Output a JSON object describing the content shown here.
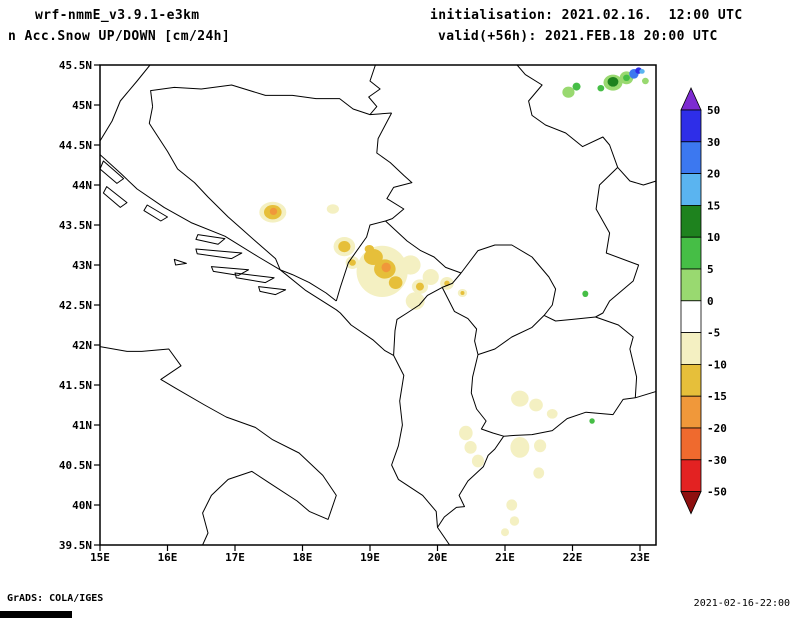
{
  "header": {
    "model_line": "wrf-nmmE_v3.9.1-e3km",
    "product_line": "n Acc.Snow UP/DOWN [cm/24h]",
    "init_line": "initialisation: 2021.02.16.  12:00 UTC",
    "valid_line": "valid(+56h): 2021.FEB.18 20:00 UTC"
  },
  "footer": {
    "credit": "GrADS: COLA/IGES",
    "timestamp": "2021-02-16-22:00"
  },
  "chart_data": {
    "type": "map",
    "title": "Acc.Snow UP/DOWN [cm/24h]",
    "units": "cm/24h",
    "extent": {
      "lon_min": 15.0,
      "lon_max": 23.24,
      "lat_min": 39.5,
      "lat_max": 45.5
    },
    "x_ticks": [
      "15E",
      "16E",
      "17E",
      "18E",
      "19E",
      "20E",
      "21E",
      "22E",
      "23E"
    ],
    "y_ticks": [
      "45.5N",
      "45N",
      "44.5N",
      "44N",
      "43.5N",
      "43N",
      "42.5N",
      "42N",
      "41.5N",
      "41N",
      "40.5N",
      "40N",
      "39.5N"
    ],
    "grid": false,
    "colorbar": {
      "position": "right",
      "labels": [
        "50",
        "30",
        "20",
        "15",
        "10",
        "5",
        "0",
        "-5",
        "-10",
        "-15",
        "-20",
        "-30",
        "-50"
      ],
      "segment_colors": [
        "#2e2ee8",
        "#3c78f0",
        "#5ab4f0",
        "#1e821e",
        "#46be46",
        "#99d970",
        "#ffffff",
        "#f4f0c2",
        "#e6bf3a",
        "#f0983a",
        "#ef6a2e",
        "#e32222"
      ],
      "above_color": "#7d2bd1",
      "below_color": "#8e0f0f"
    },
    "band_colors": {
      "-20_-15": "#f0983a",
      "-15_-10": "#e6bf3a",
      "-10_-5": "#f4f0c2",
      "0_5": "#99d970",
      "5_10": "#46be46",
      "10_15": "#1e821e",
      "15_20": "#5ab4f0",
      "20_30": "#3c78f0",
      "30_50": "#2e2ee8"
    },
    "snow_patches": [
      {
        "lon": 17.56,
        "lat": 43.66,
        "rx": 0.2,
        "ry": 0.13,
        "band": "-10_-5"
      },
      {
        "lon": 17.56,
        "lat": 43.66,
        "rx": 0.13,
        "ry": 0.09,
        "band": "-15_-10"
      },
      {
        "lon": 17.57,
        "lat": 43.67,
        "rx": 0.055,
        "ry": 0.045,
        "band": "-20_-15"
      },
      {
        "lon": 18.45,
        "lat": 43.7,
        "rx": 0.09,
        "ry": 0.06,
        "band": "-10_-5"
      },
      {
        "lon": 18.62,
        "lat": 43.23,
        "rx": 0.16,
        "ry": 0.12,
        "band": "-10_-5"
      },
      {
        "lon": 18.62,
        "lat": 43.23,
        "rx": 0.09,
        "ry": 0.07,
        "band": "-15_-10"
      },
      {
        "lon": 18.74,
        "lat": 43.03,
        "rx": 0.1,
        "ry": 0.08,
        "band": "-10_-5"
      },
      {
        "lon": 18.74,
        "lat": 43.03,
        "rx": 0.05,
        "ry": 0.04,
        "band": "-15_-10"
      },
      {
        "lon": 19.18,
        "lat": 42.92,
        "rx": 0.38,
        "ry": 0.32,
        "band": "-10_-5"
      },
      {
        "lon": 19.6,
        "lat": 43.0,
        "rx": 0.15,
        "ry": 0.12,
        "band": "-10_-5"
      },
      {
        "lon": 19.9,
        "lat": 42.85,
        "rx": 0.12,
        "ry": 0.1,
        "band": "-10_-5"
      },
      {
        "lon": 19.05,
        "lat": 43.1,
        "rx": 0.14,
        "ry": 0.1,
        "band": "-15_-10"
      },
      {
        "lon": 18.99,
        "lat": 43.2,
        "rx": 0.07,
        "ry": 0.05,
        "band": "-15_-10"
      },
      {
        "lon": 19.22,
        "lat": 42.95,
        "rx": 0.16,
        "ry": 0.12,
        "band": "-15_-10"
      },
      {
        "lon": 19.24,
        "lat": 42.97,
        "rx": 0.07,
        "ry": 0.06,
        "band": "-20_-15"
      },
      {
        "lon": 19.38,
        "lat": 42.78,
        "rx": 0.1,
        "ry": 0.08,
        "band": "-15_-10"
      },
      {
        "lon": 19.67,
        "lat": 42.55,
        "rx": 0.14,
        "ry": 0.11,
        "band": "-10_-5"
      },
      {
        "lon": 19.74,
        "lat": 42.73,
        "rx": 0.12,
        "ry": 0.09,
        "band": "-10_-5"
      },
      {
        "lon": 19.74,
        "lat": 42.73,
        "rx": 0.06,
        "ry": 0.05,
        "band": "-15_-10"
      },
      {
        "lon": 20.14,
        "lat": 42.77,
        "rx": 0.1,
        "ry": 0.08,
        "band": "-10_-5"
      },
      {
        "lon": 20.14,
        "lat": 42.77,
        "rx": 0.04,
        "ry": 0.035,
        "band": "-15_-10"
      },
      {
        "lon": 20.37,
        "lat": 42.65,
        "rx": 0.07,
        "ry": 0.05,
        "band": "-10_-5"
      },
      {
        "lon": 20.37,
        "lat": 42.65,
        "rx": 0.03,
        "ry": 0.025,
        "band": "-15_-10"
      },
      {
        "lon": 21.22,
        "lat": 41.33,
        "rx": 0.13,
        "ry": 0.1,
        "band": "-10_-5"
      },
      {
        "lon": 21.46,
        "lat": 41.25,
        "rx": 0.1,
        "ry": 0.08,
        "band": "-10_-5"
      },
      {
        "lon": 21.7,
        "lat": 41.14,
        "rx": 0.08,
        "ry": 0.06,
        "band": "-10_-5"
      },
      {
        "lon": 20.42,
        "lat": 40.9,
        "rx": 0.1,
        "ry": 0.09,
        "band": "-10_-5"
      },
      {
        "lon": 20.49,
        "lat": 40.72,
        "rx": 0.09,
        "ry": 0.08,
        "band": "-10_-5"
      },
      {
        "lon": 20.6,
        "lat": 40.55,
        "rx": 0.09,
        "ry": 0.08,
        "band": "-10_-5"
      },
      {
        "lon": 21.22,
        "lat": 40.72,
        "rx": 0.14,
        "ry": 0.13,
        "band": "-10_-5"
      },
      {
        "lon": 21.52,
        "lat": 40.74,
        "rx": 0.09,
        "ry": 0.08,
        "band": "-10_-5"
      },
      {
        "lon": 21.5,
        "lat": 40.4,
        "rx": 0.08,
        "ry": 0.07,
        "band": "-10_-5"
      },
      {
        "lon": 21.1,
        "lat": 40.0,
        "rx": 0.08,
        "ry": 0.07,
        "band": "-10_-5"
      },
      {
        "lon": 21.14,
        "lat": 39.8,
        "rx": 0.07,
        "ry": 0.06,
        "band": "-10_-5"
      },
      {
        "lon": 21.0,
        "lat": 39.66,
        "rx": 0.06,
        "ry": 0.05,
        "band": "-10_-5"
      },
      {
        "lon": 22.19,
        "lat": 42.64,
        "rx": 0.045,
        "ry": 0.04,
        "band": "5_10"
      },
      {
        "lon": 22.29,
        "lat": 41.05,
        "rx": 0.04,
        "ry": 0.035,
        "band": "5_10"
      },
      {
        "lon": 21.94,
        "lat": 45.16,
        "rx": 0.09,
        "ry": 0.07,
        "band": "0_5"
      },
      {
        "lon": 22.06,
        "lat": 45.23,
        "rx": 0.06,
        "ry": 0.05,
        "band": "5_10"
      },
      {
        "lon": 22.6,
        "lat": 45.28,
        "rx": 0.14,
        "ry": 0.1,
        "band": "0_5"
      },
      {
        "lon": 22.6,
        "lat": 45.29,
        "rx": 0.08,
        "ry": 0.06,
        "band": "10_15"
      },
      {
        "lon": 22.42,
        "lat": 45.21,
        "rx": 0.05,
        "ry": 0.04,
        "band": "5_10"
      },
      {
        "lon": 22.8,
        "lat": 45.34,
        "rx": 0.1,
        "ry": 0.08,
        "band": "0_5"
      },
      {
        "lon": 22.8,
        "lat": 45.34,
        "rx": 0.05,
        "ry": 0.04,
        "band": "5_10"
      },
      {
        "lon": 22.91,
        "lat": 45.39,
        "rx": 0.07,
        "ry": 0.06,
        "band": "20_30"
      },
      {
        "lon": 22.98,
        "lat": 45.43,
        "rx": 0.05,
        "ry": 0.04,
        "band": "30_50"
      },
      {
        "lon": 23.03,
        "lat": 45.42,
        "rx": 0.04,
        "ry": 0.03,
        "band": "15_20"
      },
      {
        "lon": 23.08,
        "lat": 45.3,
        "rx": 0.05,
        "ry": 0.04,
        "band": "0_5"
      }
    ]
  }
}
